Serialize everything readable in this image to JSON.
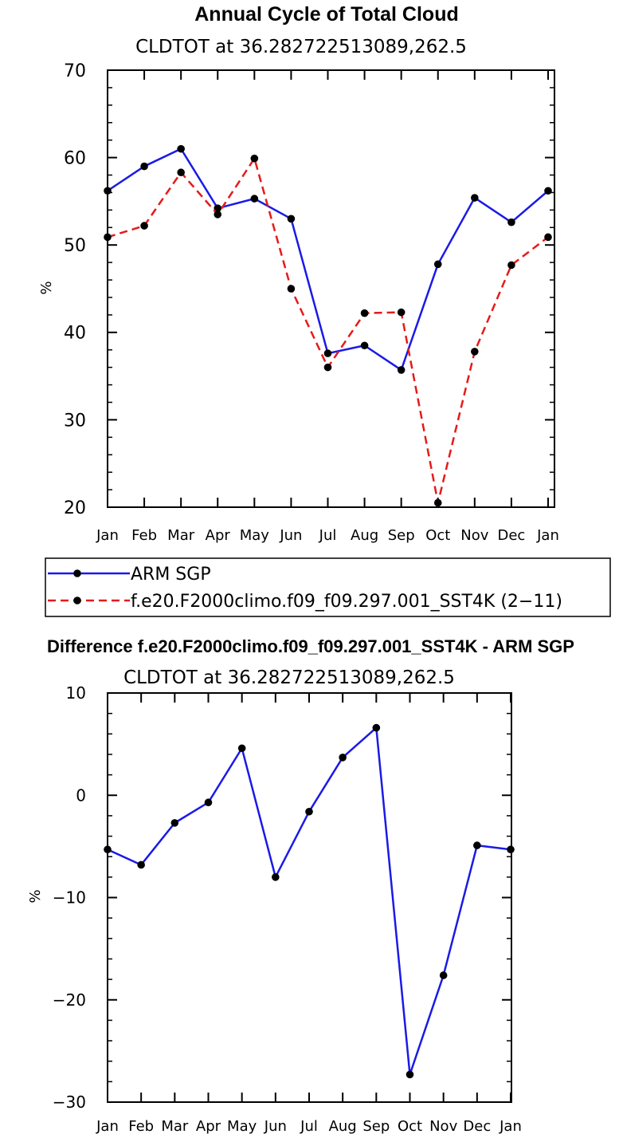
{
  "chart_data": [
    {
      "type": "line",
      "title": "Annual Cycle of Total Cloud",
      "subtitle": "CLDTOT at 36.282722513089,262.5",
      "ylabel": "%",
      "ylim": [
        20,
        70
      ],
      "yticks": [
        "20",
        "30",
        "40",
        "50",
        "60",
        "70"
      ],
      "categories": [
        "Jan",
        "Feb",
        "Mar",
        "Apr",
        "May",
        "Jun",
        "Jul",
        "Aug",
        "Sep",
        "Oct",
        "Nov",
        "Dec",
        "Jan"
      ],
      "legend_position": "bottom",
      "series": [
        {
          "name": "ARM SGP",
          "color": "#1a1ae6",
          "style": "solid",
          "values": [
            56.2,
            59.0,
            61.0,
            54.2,
            55.3,
            53.0,
            37.6,
            38.5,
            35.7,
            47.8,
            55.4,
            52.6,
            56.2
          ]
        },
        {
          "name": "f.e20.F2000climo.f09_f09.297.001_SST4K (2−11)",
          "color": "#e61a1a",
          "style": "dashed",
          "values": [
            50.9,
            52.2,
            58.3,
            53.5,
            59.9,
            45.0,
            36.0,
            42.2,
            42.3,
            20.5,
            37.8,
            47.7,
            50.9
          ]
        }
      ]
    },
    {
      "type": "line",
      "title": "Difference f.e20.F2000climo.f09_f09.297.001_SST4K - ARM SGP",
      "subtitle": "CLDTOT at 36.282722513089,262.5",
      "ylabel": "%",
      "ylim": [
        -30,
        10
      ],
      "yticks": [
        "−30",
        "−20",
        "−10",
        "0",
        "10"
      ],
      "categories": [
        "Jan",
        "Feb",
        "Mar",
        "Apr",
        "May",
        "Jun",
        "Jul",
        "Aug",
        "Sep",
        "Oct",
        "Nov",
        "Dec",
        "Jan"
      ],
      "series": [
        {
          "color": "#1a1ae6",
          "style": "solid",
          "values": [
            -5.3,
            -6.8,
            -2.7,
            -0.7,
            4.6,
            -8.0,
            -1.6,
            3.7,
            6.6,
            -27.3,
            -17.6,
            -4.9,
            -5.3
          ]
        }
      ]
    }
  ]
}
